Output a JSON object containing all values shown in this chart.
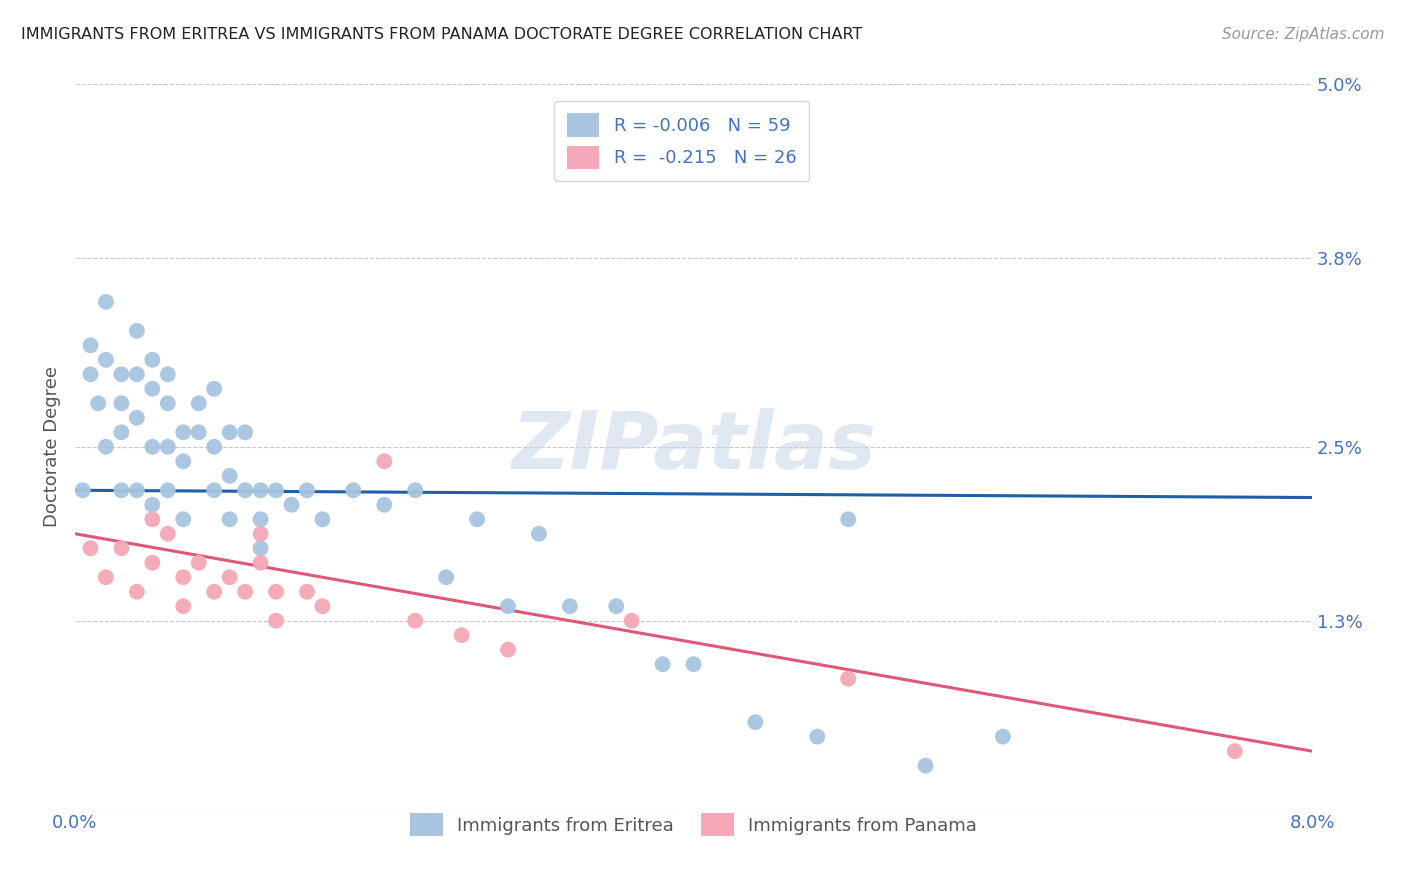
{
  "title": "IMMIGRANTS FROM ERITREA VS IMMIGRANTS FROM PANAMA DOCTORATE DEGREE CORRELATION CHART",
  "source": "Source: ZipAtlas.com",
  "ylabel": "Doctorate Degree",
  "xlim": [
    0.0,
    0.08
  ],
  "ylim": [
    0.0,
    0.05
  ],
  "ytick_positions": [
    0.0,
    0.013,
    0.025,
    0.038,
    0.05
  ],
  "ytick_labels": [
    "",
    "1.3%",
    "2.5%",
    "3.8%",
    "5.0%"
  ],
  "xtick_positions": [
    0.0,
    0.02,
    0.04,
    0.06,
    0.08
  ],
  "xtick_labels": [
    "0.0%",
    "",
    "",
    "",
    "8.0%"
  ],
  "eritrea_color": "#a8c4e0",
  "panama_color": "#f4a8b8",
  "eritrea_line_color": "#1f5fa6",
  "panama_line_color": "#e05878",
  "text_color": "#4472c4",
  "R_eritrea": -0.006,
  "N_eritrea": 59,
  "R_panama": -0.215,
  "N_panama": 26,
  "eritrea_label": "Immigrants from Eritrea",
  "panama_label": "Immigrants from Panama",
  "watermark": "ZIPatlas",
  "eritrea_x": [
    0.0005,
    0.001,
    0.001,
    0.0015,
    0.002,
    0.002,
    0.002,
    0.003,
    0.003,
    0.003,
    0.003,
    0.004,
    0.004,
    0.004,
    0.004,
    0.005,
    0.005,
    0.005,
    0.005,
    0.006,
    0.006,
    0.006,
    0.006,
    0.007,
    0.007,
    0.007,
    0.008,
    0.008,
    0.009,
    0.009,
    0.009,
    0.01,
    0.01,
    0.01,
    0.011,
    0.011,
    0.012,
    0.012,
    0.012,
    0.013,
    0.014,
    0.015,
    0.016,
    0.018,
    0.02,
    0.022,
    0.024,
    0.026,
    0.028,
    0.03,
    0.032,
    0.035,
    0.038,
    0.04,
    0.044,
    0.048,
    0.05,
    0.055,
    0.06
  ],
  "eritrea_y": [
    0.022,
    0.032,
    0.03,
    0.028,
    0.035,
    0.031,
    0.025,
    0.03,
    0.028,
    0.026,
    0.022,
    0.033,
    0.03,
    0.027,
    0.022,
    0.031,
    0.029,
    0.025,
    0.021,
    0.03,
    0.028,
    0.025,
    0.022,
    0.026,
    0.024,
    0.02,
    0.028,
    0.026,
    0.029,
    0.025,
    0.022,
    0.026,
    0.023,
    0.02,
    0.026,
    0.022,
    0.022,
    0.02,
    0.018,
    0.022,
    0.021,
    0.022,
    0.02,
    0.022,
    0.021,
    0.022,
    0.016,
    0.02,
    0.014,
    0.019,
    0.014,
    0.014,
    0.01,
    0.01,
    0.006,
    0.005,
    0.02,
    0.003,
    0.005
  ],
  "panama_x": [
    0.001,
    0.002,
    0.003,
    0.004,
    0.005,
    0.005,
    0.006,
    0.007,
    0.007,
    0.008,
    0.009,
    0.01,
    0.011,
    0.012,
    0.012,
    0.013,
    0.013,
    0.015,
    0.016,
    0.02,
    0.022,
    0.025,
    0.028,
    0.036,
    0.05,
    0.075
  ],
  "panama_y": [
    0.018,
    0.016,
    0.018,
    0.015,
    0.02,
    0.017,
    0.019,
    0.016,
    0.014,
    0.017,
    0.015,
    0.016,
    0.015,
    0.019,
    0.017,
    0.015,
    0.013,
    0.015,
    0.014,
    0.024,
    0.013,
    0.012,
    0.011,
    0.013,
    0.009,
    0.004
  ],
  "eritrea_line_y0": 0.022,
  "eritrea_line_y1": 0.0215,
  "panama_line_y0": 0.019,
  "panama_line_y1": 0.004
}
